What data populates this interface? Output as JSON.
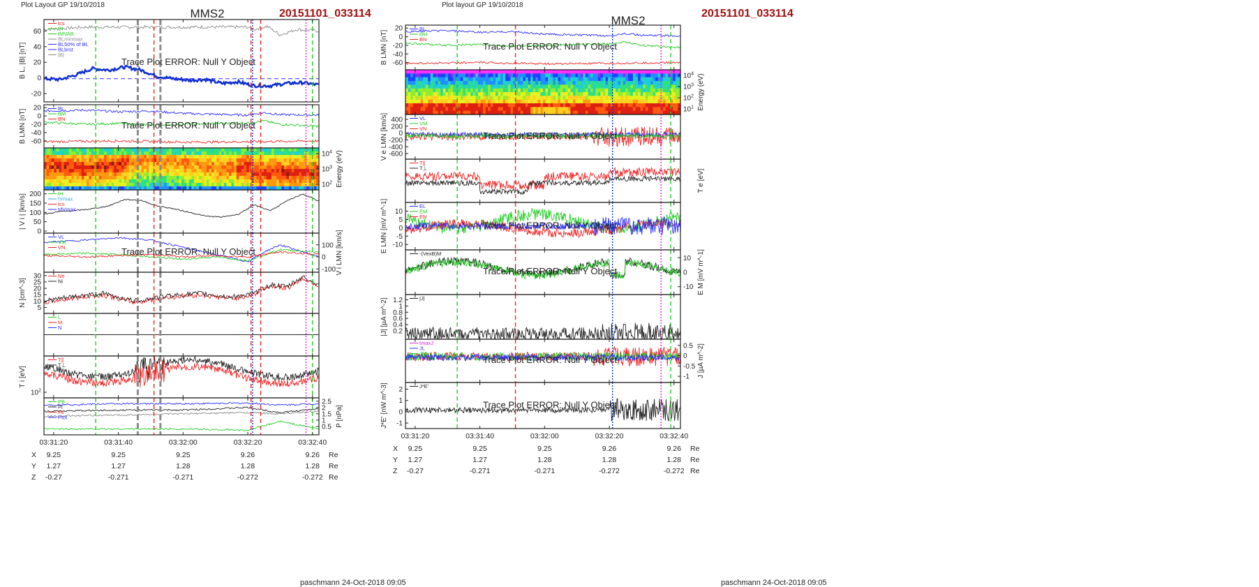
{
  "left_page": {
    "layout_label": "Plot Layout GP 19/10/2018",
    "title": "MMS2",
    "event_id": "20151101_033114",
    "footer": "paschmann 24-Oct-2018 09:05",
    "error_message": "Trace Plot ERROR: Null Y Object"
  },
  "right_page": {
    "layout_label": "Plot layout GP 19/10/2018",
    "title": "MMS2",
    "event_id": "20151101_033114",
    "footer": "paschmann 24-Oct-2018 09:05",
    "error_message": "Trace Plot ERROR: Null Y Object"
  },
  "colors": {
    "title_red": "#a01010",
    "blue": "#2a2aff",
    "green": "#22cc22",
    "red": "#ee2222",
    "black": "#222222",
    "gray": "#8a8a8a",
    "magenta": "#dd22dd",
    "cyan": "#33aadd",
    "dark_blue": "#1030cc"
  },
  "time_axis": {
    "ticks": [
      "03:31:20",
      "03:31:40",
      "03:32:00",
      "03:32:20",
      "03:32:40"
    ],
    "tick_seconds": [
      0,
      20,
      40,
      60,
      80
    ],
    "range_seconds": [
      -3,
      82
    ]
  },
  "ephemeris": {
    "rows": [
      {
        "label": "X",
        "values": [
          "9.25",
          "9.25",
          "9.25",
          "9.26",
          "9.26"
        ],
        "unit": "Re"
      },
      {
        "label": "Y",
        "values": [
          "1.27",
          "1.27",
          "1.28",
          "1.28",
          "1.28"
        ],
        "unit": "Re"
      },
      {
        "label": "Z",
        "values": [
          "-0.27",
          "-0.271",
          "-0.271",
          "-0.272",
          "-0.272"
        ],
        "unit": "Re"
      }
    ]
  },
  "chart_data": [
    {
      "type": "line",
      "panel": "left-1",
      "ylabel": "B_L, |B| [nT]",
      "ylim": [
        -28,
        72
      ],
      "yticks": [
        -20,
        0,
        20,
        40,
        60
      ],
      "legend": [
        "t_cs",
        "t_H",
        "t_MVAB",
        "BL_minmax",
        "BL_50% of BL",
        "BL_brst",
        "|B|"
      ],
      "series": [
        {
          "name": "|B|",
          "color": "gray",
          "x": [
            -3,
            10,
            20,
            30,
            40,
            50,
            60,
            62,
            66,
            70,
            75,
            82
          ],
          "y": [
            62,
            65,
            65,
            65,
            65,
            65,
            65,
            62,
            66,
            55,
            62,
            60
          ]
        },
        {
          "name": "BL_brst",
          "color": "dark_blue",
          "x": [
            -3,
            2,
            7,
            12,
            17,
            22,
            27,
            32,
            37,
            42,
            47,
            52,
            57,
            62,
            67,
            72,
            77,
            82
          ],
          "y": [
            -1,
            -2,
            4,
            12,
            10,
            14,
            10,
            2,
            -1,
            -3,
            -2,
            -7,
            -5,
            -10,
            -10,
            -7,
            -6,
            -9
          ]
        }
      ],
      "hlines": [
        {
          "y": -1,
          "color": "blue",
          "style": "dashed"
        }
      ]
    },
    {
      "type": "line",
      "panel": "left-2",
      "ylabel": "B_LMN [nT]",
      "ylim": [
        -72,
        22
      ],
      "yticks": [
        -60,
        -40,
        -20,
        0,
        20
      ],
      "legend": [
        "B_L",
        "B_M",
        "B_N"
      ],
      "series": [
        {
          "name": "B_L",
          "color": "blue",
          "x": [
            -3,
            10,
            20,
            30,
            40,
            50,
            60,
            65,
            70,
            82
          ],
          "y": [
            12,
            14,
            10,
            12,
            6,
            4,
            2,
            8,
            3,
            2
          ]
        },
        {
          "name": "B_M",
          "color": "green",
          "x": [
            -3,
            10,
            20,
            30,
            40,
            50,
            60,
            65,
            70,
            82
          ],
          "y": [
            -15,
            -20,
            -18,
            -22,
            -20,
            -18,
            -17,
            -12,
            -20,
            -25
          ]
        },
        {
          "name": "B_N",
          "color": "red",
          "x": [
            -3,
            20,
            40,
            60,
            82
          ],
          "y": [
            -62,
            -60,
            -63,
            -62,
            -60
          ]
        }
      ]
    },
    {
      "type": "heatmap",
      "panel": "left-3",
      "ylabel": "Energy (eV)",
      "yticks": [
        "10^2",
        "10^3",
        "10^4"
      ]
    },
    {
      "type": "line",
      "panel": "left-4",
      "ylabel": "| V_i | [km/s]",
      "ylim": [
        0,
        210
      ],
      "yticks": [
        0,
        50,
        100,
        150,
        200
      ],
      "legend": [
        "t_H",
        "t_Vmax",
        "t_cs",
        "t_dVmax"
      ],
      "series": [
        {
          "name": "|V_i|",
          "color": "black",
          "x": [
            -3,
            2,
            7,
            12,
            17,
            22,
            27,
            32,
            37,
            42,
            47,
            52,
            57,
            62,
            67,
            72,
            77,
            82
          ],
          "y": [
            90,
            105,
            110,
            120,
            135,
            170,
            165,
            135,
            120,
            100,
            80,
            75,
            90,
            140,
            110,
            160,
            200,
            160
          ]
        }
      ]
    },
    {
      "type": "line",
      "panel": "left-5",
      "ylabel": "V_i LMN [km/s]",
      "ylim": [
        -110,
        180
      ],
      "yticks": [
        -100,
        0,
        100
      ],
      "legend": [
        "V_L",
        "V_M",
        "V_N"
      ],
      "series": [
        {
          "name": "V_L",
          "color": "blue",
          "x": [
            -3,
            10,
            20,
            30,
            40,
            50,
            60,
            65,
            70,
            82
          ],
          "y": [
            120,
            140,
            160,
            140,
            80,
            20,
            -40,
            40,
            100,
            0
          ]
        },
        {
          "name": "V_M",
          "color": "green",
          "x": [
            -3,
            10,
            20,
            30,
            40,
            50,
            60,
            70,
            82
          ],
          "y": [
            20,
            30,
            20,
            0,
            -20,
            0,
            -30,
            60,
            40
          ]
        },
        {
          "name": "V_N",
          "color": "red",
          "x": [
            -3,
            10,
            20,
            30,
            40,
            50,
            60,
            70,
            82
          ],
          "y": [
            10,
            0,
            10,
            20,
            0,
            10,
            0,
            40,
            20
          ]
        }
      ]
    },
    {
      "type": "line",
      "panel": "left-6",
      "ylabel": "N [cm^-3]",
      "ylim": [
        2,
        31
      ],
      "yticks": [
        5,
        10,
        15,
        20,
        25,
        30
      ],
      "legend": [
        "Ne",
        "Ni"
      ],
      "series": [
        {
          "name": "Ne",
          "color": "red",
          "x": [
            -3,
            5,
            15,
            25,
            35,
            45,
            55,
            62,
            67,
            72,
            77,
            82
          ],
          "y": [
            9,
            12,
            15,
            9,
            13,
            15,
            12,
            15,
            22,
            20,
            28,
            22
          ]
        },
        {
          "name": "Ni",
          "color": "black",
          "x": [
            -3,
            5,
            15,
            25,
            35,
            45,
            55,
            62,
            67,
            72,
            77,
            82
          ],
          "y": [
            10,
            13,
            16,
            10,
            14,
            16,
            13,
            16,
            23,
            21,
            29,
            23
          ]
        }
      ]
    },
    {
      "type": "line",
      "panel": "left-7",
      "legend": [
        "L",
        "M",
        "N"
      ],
      "series": []
    },
    {
      "type": "line",
      "panel": "left-8",
      "ylabel": "T_i [eV]",
      "yticks": [
        "10^2"
      ],
      "legend": [
        "T_∥",
        "T_⊥"
      ],
      "series": []
    },
    {
      "type": "line",
      "panel": "left-9",
      "ylabel": "P [nPa]",
      "ylim": [
        0,
        2.6
      ],
      "yticks": [
        0.5,
        1.0,
        1.5,
        2.0,
        2.5
      ],
      "legend": [
        "P_B",
        "P_i",
        "P_e",
        "P_tot"
      ],
      "series": [
        {
          "name": "P_tot",
          "color": "blue",
          "x": [
            -3,
            20,
            40,
            60,
            70,
            82
          ],
          "y": [
            2.2,
            2.3,
            2.3,
            2.35,
            2.2,
            2.3
          ]
        },
        {
          "name": "P_i",
          "color": "black",
          "x": [
            -3,
            20,
            40,
            60,
            70,
            82
          ],
          "y": [
            1.7,
            1.8,
            1.8,
            2.0,
            1.6,
            1.9
          ]
        },
        {
          "name": "P_e",
          "color": "gray",
          "x": [
            -3,
            20,
            40,
            60,
            70,
            82
          ],
          "y": [
            1.3,
            1.4,
            1.5,
            1.6,
            1.5,
            1.7
          ]
        },
        {
          "name": "P_B",
          "color": "green",
          "x": [
            -3,
            20,
            40,
            60,
            70,
            82
          ],
          "y": [
            0.3,
            0.3,
            0.3,
            0.2,
            0.9,
            0.3
          ]
        }
      ]
    },
    {
      "type": "line",
      "panel": "right-1",
      "ylabel": "B_LMN [nT]",
      "ylim": [
        -72,
        22
      ],
      "yticks": [
        -60,
        -40,
        -20,
        0,
        20
      ],
      "legend": [
        "B_L",
        "B_M",
        "B_N"
      ],
      "series": [
        {
          "name": "B_L",
          "color": "blue",
          "x": [
            -3,
            10,
            20,
            30,
            40,
            50,
            60,
            65,
            70,
            82
          ],
          "y": [
            12,
            14,
            10,
            12,
            6,
            4,
            2,
            8,
            3,
            2
          ]
        },
        {
          "name": "B_M",
          "color": "green",
          "x": [
            -3,
            10,
            20,
            30,
            40,
            50,
            60,
            65,
            70,
            82
          ],
          "y": [
            -15,
            -20,
            -18,
            -22,
            -20,
            -18,
            -17,
            -12,
            -20,
            -25
          ]
        },
        {
          "name": "B_N",
          "color": "red",
          "x": [
            -3,
            20,
            40,
            60,
            82
          ],
          "y": [
            -62,
            -60,
            -63,
            -62,
            -60
          ]
        }
      ]
    },
    {
      "type": "heatmap",
      "panel": "right-2",
      "ylabel": "Energy (eV)",
      "yticks": [
        "10^1",
        "10^2",
        "10^3",
        "10^4"
      ]
    },
    {
      "type": "line",
      "panel": "right-3",
      "ylabel": "V_e LMN [km/s]",
      "ylim": [
        -700,
        480
      ],
      "yticks": [
        -600,
        -400,
        -200,
        0,
        200,
        400
      ],
      "legend": [
        "V_L",
        "V_M",
        "V_N"
      ],
      "series": []
    },
    {
      "type": "line",
      "panel": "right-4",
      "ylabel": "T_e [eV]",
      "legend": [
        "T_∥",
        "T_⊥"
      ],
      "series": []
    },
    {
      "type": "line",
      "panel": "right-5",
      "ylabel": "E_LMN [mV m^-1]",
      "ylim": [
        -12,
        14
      ],
      "yticks": [
        -10,
        -5,
        0,
        5,
        10
      ],
      "legend": [
        "E_L",
        "E_M",
        "E_N"
      ],
      "series": []
    },
    {
      "type": "line",
      "panel": "right-6",
      "ylabel": "E_M [mV m^-1]",
      "ylim": [
        -14,
        14
      ],
      "yticks": [
        -10,
        0,
        10
      ],
      "legend": [
        "-(VexB)_M"
      ],
      "series": []
    },
    {
      "type": "line",
      "panel": "right-7",
      "ylabel": "|J| [µA m^-2]",
      "ylim": [
        0,
        1.3
      ],
      "yticks": [
        0.2,
        0.4,
        0.6,
        0.8,
        1.0,
        1.2
      ],
      "legend": [
        "|J|"
      ],
      "series": []
    },
    {
      "type": "line",
      "panel": "right-8",
      "ylabel": "J [µA m^-2]",
      "ylim": [
        -1.2,
        0.7
      ],
      "yticks": [
        -1.0,
        -0.5,
        0.0,
        0.5
      ],
      "legend": [
        "t_maxJ",
        "J_L",
        "J_M"
      ],
      "series": []
    },
    {
      "type": "line",
      "panel": "right-9",
      "ylabel": "J*E' [nW m^-3]",
      "ylim": [
        -1.3,
        2.4
      ],
      "yticks": [
        -1,
        0,
        1,
        2
      ],
      "legend": [
        "J*E'"
      ],
      "series": []
    }
  ]
}
